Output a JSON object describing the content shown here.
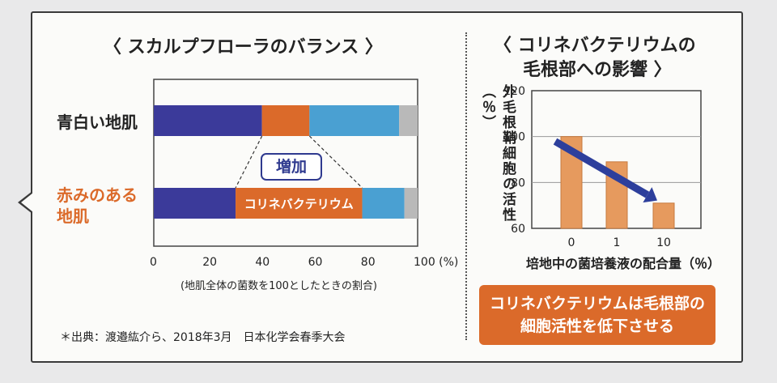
{
  "left": {
    "title": "〈 スカルプフローラのバランス 〉",
    "rows": [
      "青白い地肌",
      "赤みのある\n地肌"
    ],
    "increase_label": "増加",
    "x_axis_note": "(地肌全体の菌数を100としたときの割合)",
    "source": "＊出典：渡邉紘介ら、2018年3月　日本化学会春季大会"
  },
  "right": {
    "title_line1": "〈 コリネバクテリウムの",
    "title_line2": "毛根部への影響 〉",
    "y_label": "外毛根鞘細胞の活性（％）",
    "x_label": "培地中の菌培養液の配合量（％）",
    "callout_line1": "コリネバクテリウムは毛根部の",
    "callout_line2": "細胞活性を低下させる"
  },
  "colors": {
    "blue": "#3b3a9a",
    "orange": "#db6a2a",
    "light_blue": "#4aa0d2",
    "gray": "#b9b9b9",
    "bar_orange": "#e69a5e",
    "arrow": "#2d3f9c"
  },
  "chart_data": [
    {
      "type": "bar",
      "orientation": "horizontal",
      "stacked": true,
      "categories": [
        "青白い地肌",
        "赤みのある地肌"
      ],
      "series": [
        {
          "values": [
            41,
            31
          ],
          "color": "#3b3a9a"
        },
        {
          "name": "コリネバクテリウム",
          "values": [
            18,
            48
          ],
          "color": "#db6a2a"
        },
        {
          "values": [
            34,
            16
          ],
          "color": "#4aa0d2"
        },
        {
          "values": [
            7,
            5
          ],
          "color": "#b9b9b9"
        }
      ],
      "xticks": [
        "0",
        "20",
        "40",
        "60",
        "80",
        "100 (%)"
      ],
      "xlim": [
        0,
        100
      ]
    },
    {
      "type": "bar",
      "categories": [
        "0",
        "1",
        "10"
      ],
      "values": [
        100,
        89,
        71
      ],
      "ylim": [
        60,
        120
      ],
      "yticks": [
        "120",
        "100",
        "80",
        "60"
      ],
      "grid": true,
      "trend_arrow": {
        "from": 100,
        "to": 70
      }
    }
  ]
}
